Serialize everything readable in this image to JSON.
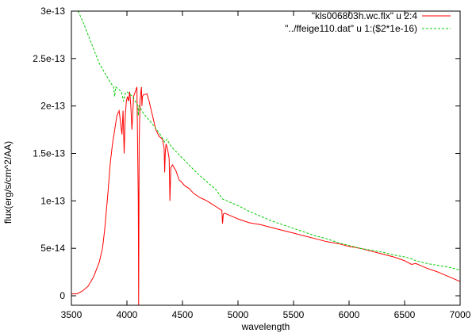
{
  "chart_data": {
    "type": "line",
    "xlabel": "wavelength",
    "ylabel": "flux(erg/s/cm^2/AA)",
    "xlim": [
      3500,
      7000
    ],
    "ylim": [
      -1e-14,
      3e-13
    ],
    "x_ticks": [
      {
        "value": 3500,
        "label": "3500"
      },
      {
        "value": 4000,
        "label": "4000"
      },
      {
        "value": 4500,
        "label": "4500"
      },
      {
        "value": 5000,
        "label": "5000"
      },
      {
        "value": 5500,
        "label": "5500"
      },
      {
        "value": 6000,
        "label": "6000"
      },
      {
        "value": 6500,
        "label": "6500"
      },
      {
        "value": 7000,
        "label": "7000"
      }
    ],
    "y_ticks": [
      {
        "value": 0,
        "label": "0"
      },
      {
        "value": 5e-14,
        "label": "5e-14"
      },
      {
        "value": 1e-13,
        "label": "1e-13"
      },
      {
        "value": 1.5e-13,
        "label": "1.5e-13"
      },
      {
        "value": 2e-13,
        "label": "2e-13"
      },
      {
        "value": 2.5e-13,
        "label": "2.5e-13"
      },
      {
        "value": 3e-13,
        "label": "3e-13"
      }
    ],
    "legend_position": "top-right",
    "series": [
      {
        "name": "\"kls006803h.wc.flx\" u 2:4",
        "color": "#ff0000",
        "dash": "solid",
        "x": [
          3500,
          3550,
          3600,
          3650,
          3700,
          3750,
          3780,
          3800,
          3830,
          3850,
          3870,
          3890,
          3910,
          3930,
          3945,
          3955,
          3965,
          3975,
          3985,
          3995,
          4005,
          4015,
          4025,
          4035,
          4045,
          4060,
          4075,
          4090,
          4102,
          4106,
          4110,
          4118,
          4126,
          4131,
          4135,
          4140,
          4150,
          4165,
          4180,
          4200,
          4220,
          4240,
          4260,
          4290,
          4320,
          4335,
          4340,
          4345,
          4352,
          4365,
          4380,
          4387,
          4395,
          4410,
          4440,
          4471,
          4490,
          4520,
          4560,
          4600,
          4650,
          4686,
          4720,
          4760,
          4800,
          4840,
          4855,
          4861,
          4868,
          4880,
          4920,
          4960,
          5000,
          5050,
          5100,
          5150,
          5200,
          5300,
          5400,
          5500,
          5600,
          5700,
          5800,
          5900,
          6000,
          6100,
          6200,
          6300,
          6400,
          6500,
          6563,
          6600,
          6700,
          6800,
          6900,
          7000
        ],
        "y": [
          2e-15,
          2e-15,
          5e-15,
          1e-14,
          2e-14,
          3.5e-14,
          5e-14,
          7e-14,
          1.1e-13,
          1.4e-13,
          1.6e-13,
          1.75e-13,
          1.9e-13,
          1.95e-13,
          1.8e-13,
          1.7e-13,
          1.95e-13,
          1.5e-13,
          1.9e-13,
          2.05e-13,
          2.1e-13,
          2.05e-13,
          2.15e-13,
          2e-13,
          1.75e-13,
          2.1e-13,
          2.15e-13,
          2.2e-13,
          1e-13,
          -1e-14,
          1.6e-13,
          2.05e-13,
          2.15e-13,
          2.2e-13,
          2e-13,
          2.1e-13,
          2.12e-13,
          2.12e-13,
          2.13e-13,
          2.05e-13,
          1.95e-13,
          1.85e-13,
          1.75e-13,
          1.68e-13,
          1.65e-13,
          1.55e-13,
          1.3e-13,
          1.5e-13,
          1.6e-13,
          1.55e-13,
          1.45e-13,
          1e-13,
          1.35e-13,
          1.38e-13,
          1.32e-13,
          1.22e-13,
          1.2e-13,
          1.16e-13,
          1.13e-13,
          1.08e-13,
          1.04e-13,
          1.02e-13,
          1e-13,
          9.7e-14,
          9.4e-14,
          9.1e-14,
          9e-14,
          7.6e-14,
          8.6e-14,
          8.7e-14,
          8.5e-14,
          8.3e-14,
          8.1e-14,
          7.9e-14,
          7.7e-14,
          7.6e-14,
          7.5e-14,
          7.2e-14,
          6.9e-14,
          6.6e-14,
          6.3e-14,
          6e-14,
          5.7e-14,
          5.5e-14,
          5.2e-14,
          5e-14,
          4.7e-14,
          4.4e-14,
          4.1e-14,
          3.7e-14,
          3.3e-14,
          3.4e-14,
          2.9e-14,
          2.5e-14,
          2e-14,
          1.5e-14
        ]
      },
      {
        "name": "\"../ffeige110.dat\" u 1:($2*1e-16)",
        "color": "#00cc00",
        "dash": "dashed",
        "x": [
          3560,
          3600,
          3650,
          3700,
          3750,
          3800,
          3850,
          3880,
          3889,
          3900,
          3950,
          3970,
          3980,
          4000,
          4050,
          4100,
          4102,
          4110,
          4150,
          4200,
          4250,
          4300,
          4340,
          4360,
          4400,
          4500,
          4600,
          4700,
          4800,
          4861,
          4900,
          5000,
          5100,
          5200,
          5300,
          5400,
          5500,
          5600,
          5700,
          5800,
          5900,
          6000,
          6100,
          6200,
          6300,
          6400,
          6500,
          6563,
          6600,
          6700,
          6800,
          6900,
          7000
        ],
        "y": [
          3e-13,
          2.9e-13,
          2.75e-13,
          2.6e-13,
          2.45e-13,
          2.35e-13,
          2.25e-13,
          2.2e-13,
          2.1e-13,
          2.2e-13,
          2.15e-13,
          2.05e-13,
          2.12e-13,
          2.15e-13,
          2.1e-13,
          2e-13,
          1.9e-13,
          2e-13,
          1.92e-13,
          1.85e-13,
          1.78e-13,
          1.7e-13,
          1.62e-13,
          1.65e-13,
          1.57e-13,
          1.45e-13,
          1.33e-13,
          1.22e-13,
          1.12e-13,
          1.02e-13,
          1e-13,
          9.5e-14,
          8.9e-14,
          8.4e-14,
          7.9e-14,
          7.5e-14,
          7.1e-14,
          6.7e-14,
          6.3e-14,
          6e-14,
          5.6e-14,
          5.3e-14,
          5e-14,
          4.8e-14,
          4.6e-14,
          4.3e-14,
          4.1e-14,
          3.9e-14,
          3.7e-14,
          3.4e-14,
          3.2e-14,
          3e-14,
          2.7e-14
        ]
      }
    ]
  }
}
